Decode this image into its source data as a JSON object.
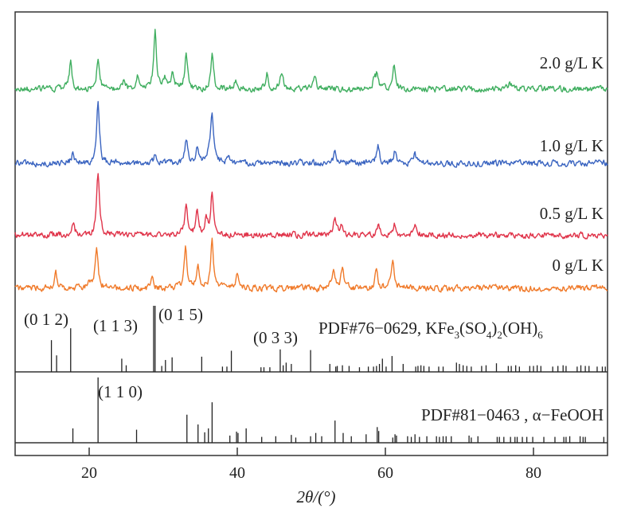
{
  "chart_data": {
    "type": "line",
    "title": "",
    "xlabel": "2θ/(°)",
    "ylabel": "",
    "xlim": [
      10,
      90
    ],
    "xticks": [
      "20",
      "40",
      "60",
      "80"
    ],
    "xtick_values": [
      20,
      40,
      60,
      80
    ],
    "grid": false,
    "series": [
      {
        "name": "2.0 g/L K",
        "color": "#3fae5f",
        "seed": 11,
        "peaks": [
          [
            17.5,
            35
          ],
          [
            21.2,
            38
          ],
          [
            24.7,
            12
          ],
          [
            26.5,
            16
          ],
          [
            28.9,
            75
          ],
          [
            30.2,
            14
          ],
          [
            31.3,
            20
          ],
          [
            33.1,
            45
          ],
          [
            36.6,
            42
          ],
          [
            39.8,
            12
          ],
          [
            44.0,
            20
          ],
          [
            46.0,
            22
          ],
          [
            50.5,
            14
          ],
          [
            58.5,
            12
          ],
          [
            58.9,
            18
          ],
          [
            61.2,
            30
          ],
          [
            76.8,
            10
          ]
        ]
      },
      {
        "name": "1.0 g/L K",
        "color": "#3a64c0",
        "seed": 23,
        "peaks": [
          [
            17.8,
            12
          ],
          [
            21.2,
            78
          ],
          [
            28.9,
            10
          ],
          [
            33.1,
            30
          ],
          [
            34.6,
            22
          ],
          [
            36.2,
            15
          ],
          [
            36.6,
            60
          ],
          [
            38.8,
            10
          ],
          [
            53.2,
            14
          ],
          [
            59.0,
            22
          ],
          [
            61.3,
            16
          ],
          [
            64.0,
            12
          ]
        ]
      },
      {
        "name": "0.5 g/L K",
        "color": "#e0344a",
        "seed": 37,
        "peaks": [
          [
            17.8,
            15
          ],
          [
            21.2,
            78
          ],
          [
            33.1,
            40
          ],
          [
            34.6,
            30
          ],
          [
            35.8,
            20
          ],
          [
            36.6,
            55
          ],
          [
            53.2,
            22
          ],
          [
            54.0,
            12
          ],
          [
            59.0,
            12
          ],
          [
            61.2,
            14
          ],
          [
            64.0,
            12
          ]
        ]
      },
      {
        "name": "0 g/L K",
        "color": "#f07a2a",
        "seed": 51,
        "peaks": [
          [
            15.5,
            18
          ],
          [
            20.0,
            10
          ],
          [
            21.0,
            55
          ],
          [
            28.5,
            14
          ],
          [
            33.0,
            50
          ],
          [
            34.7,
            30
          ],
          [
            36.6,
            60
          ],
          [
            40.0,
            18
          ],
          [
            53.0,
            25
          ],
          [
            54.2,
            28
          ],
          [
            58.8,
            24
          ],
          [
            61.0,
            38
          ]
        ]
      }
    ],
    "references": [
      {
        "name": "PDF#76−0629, KFe3(SO4)2(OH)6",
        "label": {
          "prefix": "PDF#76−0629, KFe",
          "s1": "3",
          "m1": "(SO",
          "s2": "4",
          "m2": ")",
          "s3": "2",
          "m3": "(OH)",
          "s4": "6"
        },
        "annotations": [
          {
            "hkl": "(0 1 2)",
            "x": 17.5
          },
          {
            "hkl": "(1 1 3)",
            "x": 24.4
          },
          {
            "hkl": "(0 1 5)",
            "x": 28.9
          },
          {
            "hkl": "(0 3 3)",
            "x": 45.8
          }
        ],
        "sticks": [
          [
            14.9,
            48
          ],
          [
            15.6,
            25
          ],
          [
            17.5,
            66
          ],
          [
            24.4,
            20
          ],
          [
            25.0,
            10
          ],
          [
            28.7,
            100
          ],
          [
            28.9,
            100
          ],
          [
            29.8,
            9
          ],
          [
            30.3,
            18
          ],
          [
            31.2,
            22
          ],
          [
            35.2,
            23
          ],
          [
            38.0,
            8
          ],
          [
            38.6,
            8
          ],
          [
            39.2,
            32
          ],
          [
            43.2,
            7
          ],
          [
            43.6,
            7
          ],
          [
            44.4,
            7
          ],
          [
            45.8,
            34
          ],
          [
            46.2,
            10
          ],
          [
            46.6,
            14
          ],
          [
            47.3,
            12
          ],
          [
            49.9,
            33
          ],
          [
            52.5,
            12
          ],
          [
            53.3,
            8
          ],
          [
            53.5,
            9
          ],
          [
            54.2,
            10
          ],
          [
            55.1,
            9
          ],
          [
            56.5,
            7
          ],
          [
            57.7,
            8
          ],
          [
            58.4,
            8
          ],
          [
            58.8,
            9
          ],
          [
            59.2,
            12
          ],
          [
            59.6,
            20
          ],
          [
            60.1,
            8
          ],
          [
            60.9,
            24
          ],
          [
            62.4,
            12
          ],
          [
            64.1,
            8
          ],
          [
            64.4,
            9
          ],
          [
            64.8,
            10
          ],
          [
            65.2,
            9
          ],
          [
            65.9,
            8
          ],
          [
            67.2,
            8
          ],
          [
            67.8,
            8
          ],
          [
            69.6,
            14
          ],
          [
            70.0,
            12
          ],
          [
            70.5,
            10
          ],
          [
            71.0,
            9
          ],
          [
            71.6,
            8
          ],
          [
            73.0,
            9
          ],
          [
            73.6,
            10
          ],
          [
            75.0,
            13
          ],
          [
            76.6,
            9
          ],
          [
            77.0,
            9
          ],
          [
            77.6,
            10
          ],
          [
            78.1,
            8
          ],
          [
            79.5,
            9
          ],
          [
            80.0,
            9
          ],
          [
            80.5,
            10
          ],
          [
            81.0,
            9
          ],
          [
            82.6,
            8
          ],
          [
            83.3,
            9
          ],
          [
            84.0,
            10
          ],
          [
            84.4,
            9
          ],
          [
            85.9,
            8
          ],
          [
            86.4,
            10
          ],
          [
            87.0,
            9
          ],
          [
            87.5,
            9
          ],
          [
            88.6,
            8
          ],
          [
            89.3,
            8
          ],
          [
            89.7,
            8
          ]
        ]
      },
      {
        "name": "PDF#81−0463 , α−FeOOH",
        "label": {
          "text": "PDF#81−0463 , α−FeOOH"
        },
        "annotations": [
          {
            "hkl": "(1 1 0)",
            "x": 21.2
          }
        ],
        "sticks": [
          [
            17.8,
            22
          ],
          [
            21.2,
            100
          ],
          [
            26.4,
            20
          ],
          [
            33.2,
            43
          ],
          [
            34.7,
            28
          ],
          [
            35.6,
            16
          ],
          [
            36.1,
            22
          ],
          [
            36.6,
            62
          ],
          [
            39.0,
            11
          ],
          [
            39.9,
            17
          ],
          [
            40.1,
            15
          ],
          [
            41.2,
            22
          ],
          [
            43.3,
            9
          ],
          [
            45.2,
            10
          ],
          [
            47.3,
            12
          ],
          [
            47.9,
            8
          ],
          [
            49.9,
            10
          ],
          [
            50.6,
            15
          ],
          [
            51.4,
            10
          ],
          [
            53.2,
            34
          ],
          [
            54.3,
            15
          ],
          [
            55.4,
            10
          ],
          [
            57.4,
            13
          ],
          [
            58.9,
            24
          ],
          [
            59.1,
            18
          ],
          [
            61.0,
            8
          ],
          [
            61.3,
            13
          ],
          [
            61.5,
            11
          ],
          [
            63.0,
            10
          ],
          [
            63.5,
            9
          ],
          [
            64.0,
            13
          ],
          [
            64.6,
            9
          ],
          [
            65.6,
            10
          ],
          [
            66.9,
            10
          ],
          [
            67.3,
            9
          ],
          [
            67.8,
            10
          ],
          [
            68.2,
            10
          ],
          [
            68.9,
            10
          ],
          [
            71.3,
            11
          ],
          [
            71.6,
            8
          ],
          [
            72.5,
            10
          ],
          [
            75.1,
            9
          ],
          [
            75.4,
            9
          ],
          [
            76.0,
            9
          ],
          [
            76.9,
            9
          ],
          [
            77.5,
            9
          ],
          [
            77.8,
            9
          ],
          [
            78.5,
            9
          ],
          [
            79.1,
            9
          ],
          [
            79.9,
            9
          ],
          [
            81.4,
            9
          ],
          [
            82.9,
            9
          ],
          [
            84.1,
            9
          ],
          [
            84.4,
            9
          ],
          [
            84.9,
            10
          ],
          [
            86.3,
            10
          ],
          [
            86.7,
            9
          ],
          [
            87.0,
            9
          ],
          [
            89.5,
            9
          ]
        ]
      }
    ]
  }
}
